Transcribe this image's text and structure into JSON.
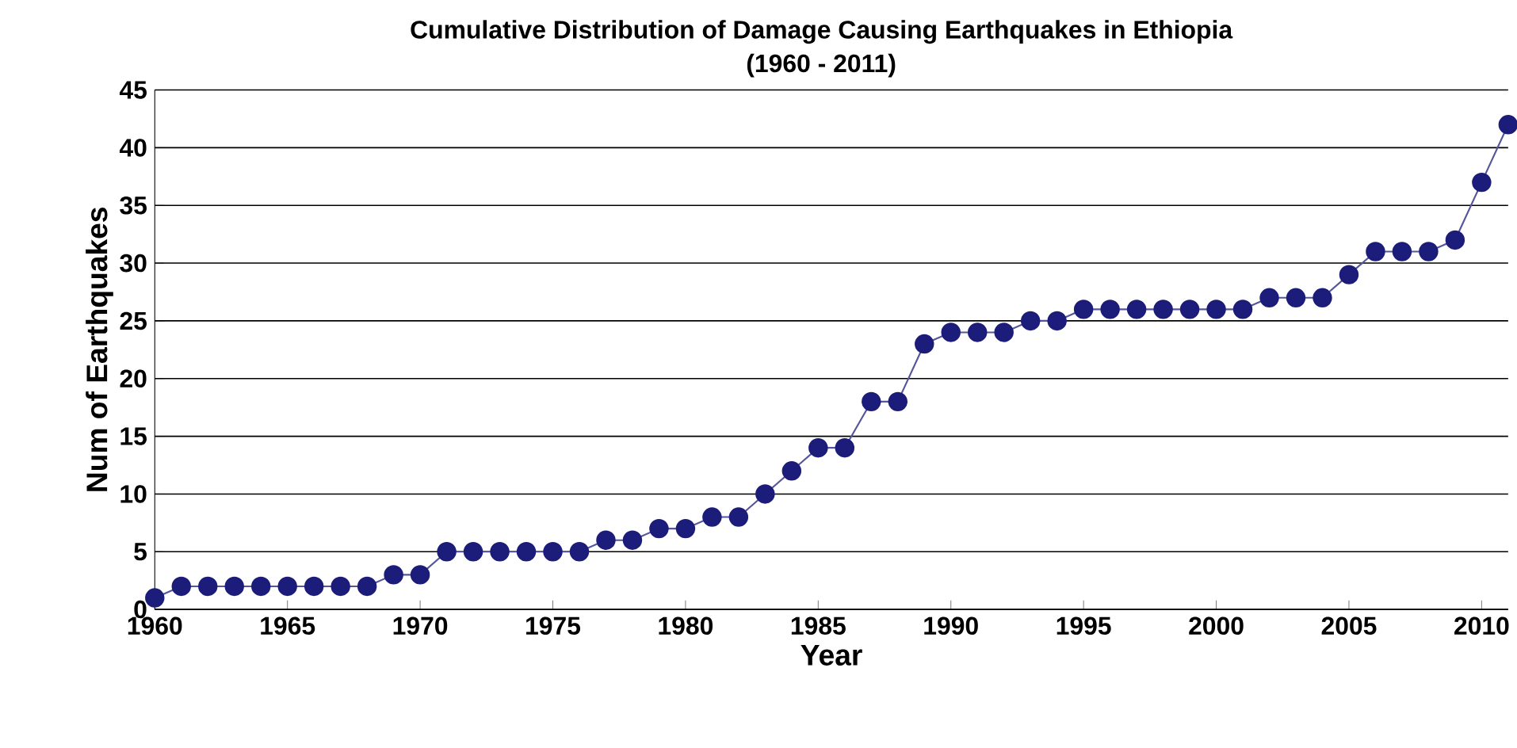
{
  "chart_data": {
    "type": "line",
    "title": "Cumulative Distribution of Damage Causing Earthquakes in Ethiopia",
    "subtitle": "(1960 - 2011)",
    "xlabel": "Year",
    "ylabel": "Num of Earthquakes",
    "x": [
      1960,
      1961,
      1962,
      1963,
      1964,
      1965,
      1966,
      1967,
      1968,
      1969,
      1970,
      1971,
      1972,
      1973,
      1974,
      1975,
      1976,
      1977,
      1978,
      1979,
      1980,
      1981,
      1982,
      1983,
      1984,
      1985,
      1986,
      1987,
      1988,
      1989,
      1990,
      1991,
      1992,
      1993,
      1994,
      1995,
      1996,
      1997,
      1998,
      1999,
      2000,
      2001,
      2002,
      2003,
      2004,
      2005,
      2006,
      2007,
      2008,
      2009,
      2010,
      2011
    ],
    "series": [
      {
        "color": "#1c1c7a",
        "values": [
          1,
          2,
          2,
          2,
          2,
          2,
          2,
          2,
          2,
          3,
          3,
          5,
          5,
          5,
          5,
          5,
          5,
          6,
          6,
          7,
          7,
          8,
          8,
          10,
          12,
          14,
          14,
          18,
          18,
          23,
          24,
          24,
          24,
          25,
          25,
          26,
          26,
          26,
          26,
          26,
          26,
          26,
          27,
          27,
          27,
          29,
          31,
          31,
          31,
          32,
          37,
          42
        ]
      }
    ],
    "xlim": [
      1960,
      2011
    ],
    "xticks": [
      1960,
      1965,
      1970,
      1975,
      1980,
      1985,
      1990,
      1995,
      2000,
      2005,
      2010
    ],
    "ylim": [
      0,
      45
    ],
    "yticks": [
      0,
      5,
      10,
      15,
      20,
      25,
      30,
      35,
      40,
      45
    ],
    "grid": "y",
    "marker": "circle",
    "line_style": "solid"
  }
}
